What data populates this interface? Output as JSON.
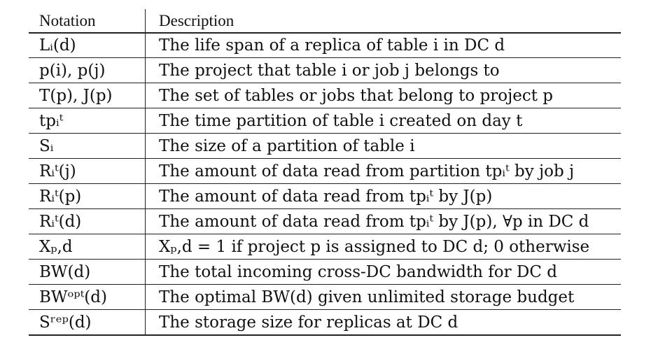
{
  "table": {
    "headers": {
      "notation": "Notation",
      "description": "Description"
    },
    "rows": [
      {
        "notation": "Lᵢ(d)",
        "description": "The life span of a replica of table i in DC d"
      },
      {
        "notation": "p(i), p(j)",
        "description": "The project that table i or job j belongs to"
      },
      {
        "notation": "T(p), J(p)",
        "description": "The set of tables or jobs that belong to project p"
      },
      {
        "notation": "tpᵢᵗ",
        "description": "The time partition of table i created on day t"
      },
      {
        "notation": "Sᵢ",
        "description": "The size of a partition of table i"
      },
      {
        "notation": "Rᵢᵗ(j)",
        "description": "The amount of data read from partition tpᵢᵗ by job j"
      },
      {
        "notation": "Rᵢᵗ(p)",
        "description": "The amount of data read from tpᵢᵗ by J(p)"
      },
      {
        "notation": "Rᵢᵗ(d)",
        "description": "The amount of data read from tpᵢᵗ by J(p), ∀p in DC d"
      },
      {
        "notation": "Xₚ,d",
        "description": "Xₚ,d = 1 if project p is assigned to DC d; 0 otherwise"
      },
      {
        "notation": "BW(d)",
        "description": "The total incoming cross-DC bandwidth for DC d"
      },
      {
        "notation": "BWᵒᵖᵗ(d)",
        "description": "The optimal BW(d) given unlimited storage budget"
      },
      {
        "notation": "Sʳᵉᵖ(d)",
        "description": "The storage size for replicas at DC d"
      }
    ]
  }
}
